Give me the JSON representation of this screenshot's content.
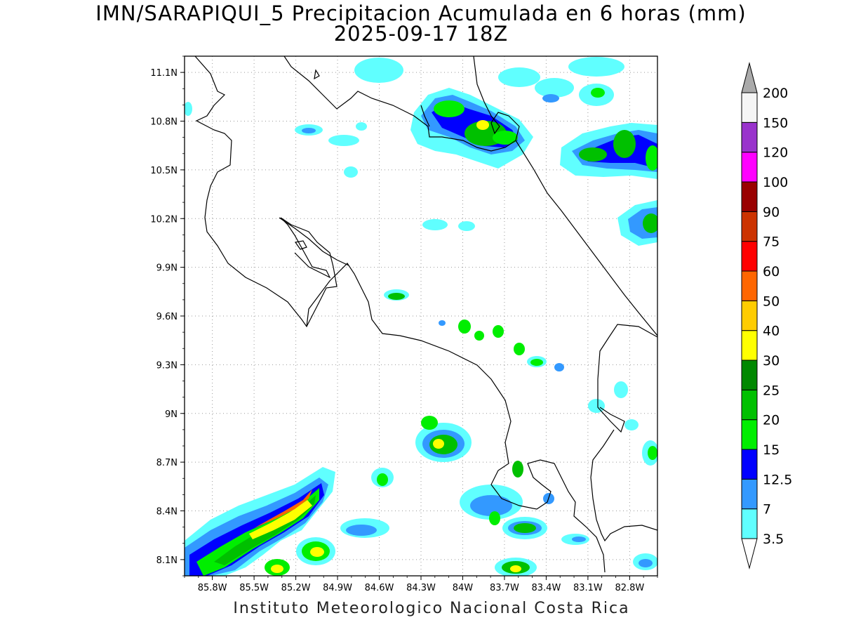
{
  "title_line1": "IMN/SARAPIQUI_5 Precipitacion Acumulada en 6 horas (mm)",
  "title_line2": "2025-09-17 18Z",
  "footer": "Instituto Meteorologico Nacional Costa Rica",
  "map": {
    "lon_range": [
      -86.0,
      -82.6
    ],
    "lat_range": [
      8.0,
      11.2
    ],
    "lat_ticks": [
      "11.1N",
      "10.8N",
      "10.5N",
      "10.2N",
      "9.9N",
      "9.6N",
      "9.3N",
      "9N",
      "8.7N",
      "8.4N",
      "8.1N"
    ],
    "lon_ticks": [
      "85.8W",
      "85.5W",
      "85.2W",
      "84.9W",
      "84.6W",
      "84.3W",
      "84W",
      "83.7W",
      "83.4W",
      "83.1W",
      "82.8W"
    ],
    "grid": "dotted"
  },
  "colorbar": {
    "labels": [
      "3.5",
      "7",
      "12.5",
      "15",
      "20",
      "25",
      "30",
      "40",
      "50",
      "60",
      "75",
      "90",
      "100",
      "120",
      "150",
      "200"
    ],
    "colors": [
      "#60ffff",
      "#3399ff",
      "#0000ff",
      "#00ee00",
      "#00c000",
      "#008800",
      "#ffff00",
      "#ffcc00",
      "#ff6600",
      "#ff0000",
      "#cc3300",
      "#990000",
      "#ff00ff",
      "#9933cc",
      "#f5f5f5",
      "#aaaaaa"
    ]
  }
}
